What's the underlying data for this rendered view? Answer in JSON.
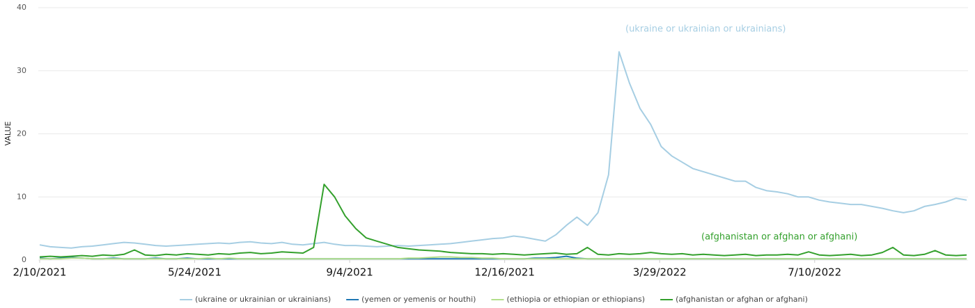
{
  "chart_data": {
    "type": "line",
    "y_label": "VALUE",
    "x": [
      "2/10/2021",
      "2/17/2021",
      "2/24/2021",
      "3/3/2021",
      "3/10/2021",
      "3/17/2021",
      "3/24/2021",
      "3/31/2021",
      "4/7/2021",
      "4/14/2021",
      "4/21/2021",
      "4/28/2021",
      "5/5/2021",
      "5/12/2021",
      "5/19/2021",
      "5/26/2021",
      "6/2/2021",
      "6/9/2021",
      "6/16/2021",
      "6/23/2021",
      "6/30/2021",
      "7/7/2021",
      "7/14/2021",
      "7/21/2021",
      "7/28/2021",
      "8/4/2021",
      "8/11/2021",
      "8/18/2021",
      "8/25/2021",
      "9/1/2021",
      "9/8/2021",
      "9/15/2021",
      "9/22/2021",
      "9/29/2021",
      "10/6/2021",
      "10/13/2021",
      "10/20/2021",
      "10/27/2021",
      "11/3/2021",
      "11/10/2021",
      "11/17/2021",
      "11/24/2021",
      "12/1/2021",
      "12/8/2021",
      "12/15/2021",
      "12/22/2021",
      "12/29/2021",
      "1/5/2022",
      "1/12/2022",
      "1/19/2022",
      "1/26/2022",
      "2/2/2022",
      "2/9/2022",
      "2/16/2022",
      "2/23/2022",
      "3/2/2022",
      "3/9/2022",
      "3/16/2022",
      "3/23/2022",
      "3/30/2022",
      "4/6/2022",
      "4/13/2022",
      "4/20/2022",
      "4/27/2022",
      "5/4/2022",
      "5/11/2022",
      "5/18/2022",
      "5/25/2022",
      "6/1/2022",
      "6/8/2022",
      "6/15/2022",
      "6/22/2022",
      "6/29/2022",
      "7/6/2022",
      "7/13/2022",
      "7/20/2022",
      "7/27/2022",
      "8/3/2022",
      "8/10/2022",
      "8/17/2022",
      "8/24/2022",
      "8/31/2022",
      "9/7/2022",
      "9/14/2022",
      "9/21/2022",
      "9/28/2022",
      "10/5/2022",
      "10/12/2022",
      "10/19/2022"
    ],
    "xlim": [
      "2/10/2021",
      "10/19/2022"
    ],
    "xticks": [
      "2/10/2021",
      "5/24/2021",
      "9/4/2021",
      "12/16/2021",
      "3/29/2022",
      "7/10/2022"
    ],
    "ylim": [
      0,
      40
    ],
    "yticks": [
      0,
      10,
      20,
      30,
      40
    ],
    "grid": true,
    "series": [
      {
        "name": "(ukraine or ukrainian or ukrainians)",
        "color": "#a6cee3",
        "values": [
          2.4,
          2.1,
          2.0,
          1.9,
          2.1,
          2.2,
          2.4,
          2.6,
          2.8,
          2.7,
          2.5,
          2.3,
          2.2,
          2.3,
          2.4,
          2.5,
          2.6,
          2.7,
          2.6,
          2.8,
          2.9,
          2.7,
          2.6,
          2.8,
          2.5,
          2.4,
          2.6,
          2.8,
          2.5,
          2.3,
          2.3,
          2.2,
          2.1,
          2.2,
          2.3,
          2.2,
          2.3,
          2.4,
          2.5,
          2.6,
          2.8,
          3.0,
          3.2,
          3.4,
          3.5,
          3.8,
          3.6,
          3.3,
          3.0,
          4.0,
          5.5,
          6.8,
          5.5,
          7.5,
          13.5,
          33.0,
          28.0,
          24.0,
          21.5,
          18.0,
          16.5,
          15.5,
          14.5,
          14.0,
          13.5,
          13.0,
          12.5,
          12.5,
          11.5,
          11.0,
          10.8,
          10.5,
          10.0,
          10.0,
          9.5,
          9.2,
          9.0,
          8.8,
          8.8,
          8.5,
          8.2,
          7.8,
          7.5,
          7.8,
          8.5,
          8.8,
          9.2,
          9.8,
          9.5
        ]
      },
      {
        "name": "(yemen or yemenis or houthi)",
        "color": "#1f78b4",
        "values": [
          0.3,
          0.2,
          0.3,
          0.4,
          0.3,
          0.2,
          0.2,
          0.3,
          0.2,
          0.2,
          0.2,
          0.3,
          0.2,
          0.2,
          0.3,
          0.2,
          0.2,
          0.2,
          0.2,
          0.2,
          0.2,
          0.2,
          0.2,
          0.2,
          0.2,
          0.2,
          0.2,
          0.2,
          0.2,
          0.2,
          0.2,
          0.2,
          0.2,
          0.2,
          0.2,
          0.2,
          0.2,
          0.2,
          0.2,
          0.2,
          0.2,
          0.2,
          0.2,
          0.2,
          0.2,
          0.2,
          0.2,
          0.3,
          0.3,
          0.4,
          0.6,
          0.3,
          0.2,
          0.2,
          0.2,
          0.2,
          0.2,
          0.2,
          0.2,
          0.2,
          0.2,
          0.2,
          0.2,
          0.2,
          0.2,
          0.2,
          0.2,
          0.2,
          0.2,
          0.2,
          0.2,
          0.2,
          0.2,
          0.2,
          0.2,
          0.2,
          0.2,
          0.2,
          0.2,
          0.2,
          0.2,
          0.2,
          0.2,
          0.2,
          0.2,
          0.2,
          0.2,
          0.2,
          0.2
        ]
      },
      {
        "name": "(ethiopia or ethiopian or ethiopians)",
        "color": "#b2df8a",
        "values": [
          0.2,
          0.2,
          0.2,
          0.3,
          0.3,
          0.2,
          0.2,
          0.2,
          0.2,
          0.2,
          0.2,
          0.2,
          0.2,
          0.2,
          0.2,
          0.2,
          0.3,
          0.2,
          0.3,
          0.2,
          0.2,
          0.2,
          0.2,
          0.2,
          0.2,
          0.2,
          0.2,
          0.2,
          0.2,
          0.2,
          0.2,
          0.2,
          0.2,
          0.2,
          0.2,
          0.3,
          0.3,
          0.4,
          0.5,
          0.5,
          0.4,
          0.4,
          0.3,
          0.3,
          0.2,
          0.2,
          0.2,
          0.2,
          0.2,
          0.2,
          0.2,
          0.2,
          0.2,
          0.2,
          0.2,
          0.2,
          0.2,
          0.2,
          0.2,
          0.2,
          0.2,
          0.2,
          0.2,
          0.2,
          0.2,
          0.2,
          0.2,
          0.2,
          0.2,
          0.2,
          0.2,
          0.2,
          0.2,
          0.2,
          0.2,
          0.2,
          0.2,
          0.2,
          0.2,
          0.2,
          0.2,
          0.2,
          0.2,
          0.2,
          0.2,
          0.2,
          0.2,
          0.2,
          0.2
        ]
      },
      {
        "name": "(afghanistan or afghan or afghani)",
        "color": "#33a02c",
        "values": [
          0.5,
          0.6,
          0.5,
          0.6,
          0.7,
          0.6,
          0.8,
          0.7,
          0.9,
          1.6,
          0.8,
          0.7,
          0.9,
          0.8,
          1.0,
          0.9,
          0.8,
          1.0,
          0.9,
          1.1,
          1.2,
          1.0,
          1.1,
          1.3,
          1.2,
          1.1,
          2.0,
          12.0,
          10.0,
          7.0,
          5.0,
          3.5,
          3.0,
          2.5,
          2.0,
          1.8,
          1.6,
          1.5,
          1.4,
          1.2,
          1.1,
          1.0,
          1.0,
          0.9,
          1.0,
          0.9,
          0.8,
          0.9,
          1.0,
          1.1,
          0.9,
          1.0,
          2.0,
          0.9,
          0.8,
          1.0,
          0.9,
          1.0,
          1.2,
          1.0,
          0.9,
          1.0,
          0.8,
          0.9,
          0.8,
          0.7,
          0.8,
          0.9,
          0.7,
          0.8,
          0.8,
          0.9,
          0.8,
          1.3,
          0.8,
          0.7,
          0.8,
          0.9,
          0.7,
          0.8,
          1.2,
          2.0,
          0.8,
          0.7,
          0.9,
          1.5,
          0.8,
          0.7,
          0.8
        ]
      }
    ],
    "annotations": [
      "(ukraine or ukrainian or ukrainians)",
      "(afghanistan or afghan or afghani)"
    ]
  }
}
